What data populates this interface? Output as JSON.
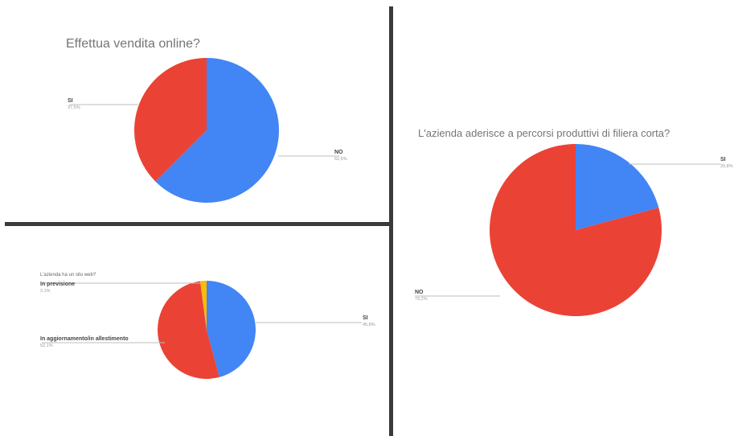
{
  "charts": [
    {
      "chart_data": {
        "type": "pie",
        "title": "Effettua vendita online?",
        "slices": [
          {
            "label": "NO",
            "value": 62.5,
            "value_label": "62,5%",
            "color": "#4285F4"
          },
          {
            "label": "SI",
            "value": 37.5,
            "value_label": "37,5%",
            "color": "#EA4335"
          }
        ],
        "legend": "none"
      }
    },
    {
      "chart_data": {
        "type": "pie",
        "title": "",
        "subtitle": "L'azienda ha un sito web?",
        "slices": [
          {
            "label": "SI",
            "value": 45.8,
            "value_label": "45,8%",
            "color": "#4285F4"
          },
          {
            "label": "In aggiornamento/in allestimento",
            "value": 52.1,
            "value_label": "52,1%",
            "color": "#EA4335"
          },
          {
            "label": "In previsione",
            "value": 2.1,
            "value_label": "2,1%",
            "color": "#FBBC04"
          }
        ],
        "legend": "none"
      }
    },
    {
      "chart_data": {
        "type": "pie",
        "title": "L'azienda aderisce a percorsi produttivi di filiera corta?",
        "slices": [
          {
            "label": "SI",
            "value": 20.8,
            "value_label": "20,8%",
            "color": "#4285F4"
          },
          {
            "label": "NO",
            "value": 79.2,
            "value_label": "79,2%",
            "color": "#EA4335"
          }
        ],
        "legend": "none"
      }
    }
  ]
}
